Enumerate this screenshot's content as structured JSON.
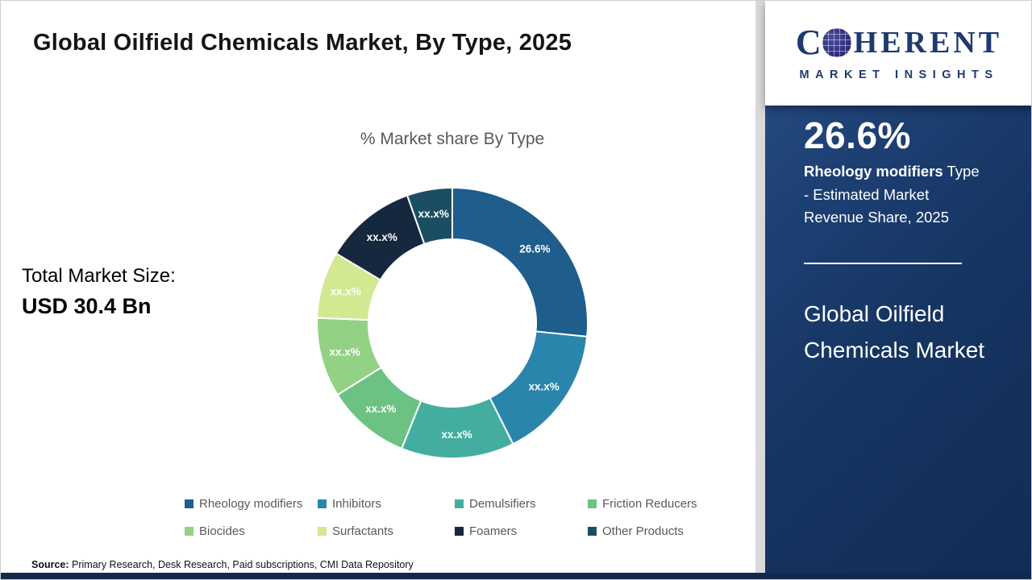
{
  "header": {
    "title": "Global Oilfield Chemicals Market, By Type, 2025"
  },
  "logo": {
    "prefix": "C",
    "word": "HERENT",
    "subtitle": "MARKET INSIGHTS"
  },
  "market_size": {
    "label": "Total Market Size:",
    "value": "USD 30.4 Bn"
  },
  "chart_data": {
    "type": "pie",
    "donut": true,
    "title": "% Market share By Type",
    "unit": "%",
    "legend_position": "bottom",
    "segments": [
      {
        "label": "Rheology modifiers",
        "display": "26.6%",
        "value": 26.6,
        "color": "#1e5d8c"
      },
      {
        "label": "Inhibitors",
        "display": "xx.x%",
        "value": 16.0,
        "color": "#2a85ad"
      },
      {
        "label": "Demulsifiers",
        "display": "xx.x%",
        "value": 13.5,
        "color": "#43ae9f"
      },
      {
        "label": "Friction Reducers",
        "display": "xx.x%",
        "value": 10.0,
        "color": "#6cc283"
      },
      {
        "label": "Biocides",
        "display": "xx.x%",
        "value": 9.5,
        "color": "#93d284"
      },
      {
        "label": "Surfactants",
        "display": "xx.x%",
        "value": 8.0,
        "color": "#d2e891"
      },
      {
        "label": "Foamers",
        "display": "xx.x%",
        "value": 11.0,
        "color": "#15283e"
      },
      {
        "label": "Other Products",
        "display": "xx.x%",
        "value": 5.4,
        "color": "#1c4e63"
      }
    ]
  },
  "side_panel": {
    "stat_value": "26.6%",
    "stat_label_bold": "Rheology modifiers",
    "stat_label_rest": " Type - Estimated Market Revenue Share, 2025",
    "title": "Global Oilfield Chemicals Market"
  },
  "source": {
    "label": "Source:",
    "text": " Primary Research, Desk Research, Paid subscriptions, CMI Data Repository"
  }
}
